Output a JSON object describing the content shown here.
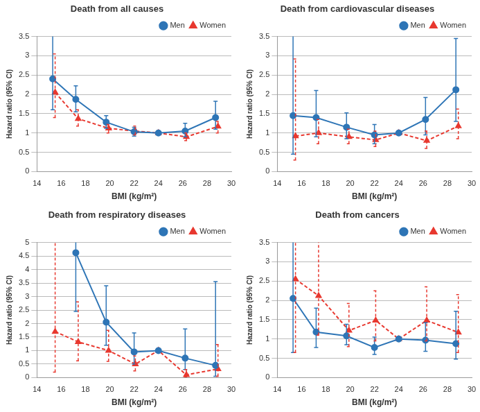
{
  "chart_data": [
    {
      "type": "line",
      "title": "Death from all causes",
      "x_label": "BMI (kg/m²)",
      "y_label": "Hazard ratio (95% CI)",
      "xlim": [
        14,
        30
      ],
      "xticks": [
        14,
        16,
        18,
        20,
        22,
        24,
        26,
        28,
        30
      ],
      "ylim": [
        0,
        3.5
      ],
      "yticks": [
        0,
        0.5,
        1,
        1.5,
        2,
        2.5,
        3,
        3.5
      ],
      "grid": "y",
      "legend": "top-right",
      "series": [
        {
          "name": "Men",
          "color": "#2e75b6",
          "marker": "circle",
          "line_style": "solid",
          "x": [
            15.3,
            17.2,
            19.7,
            22.0,
            24.0,
            26.2,
            28.7
          ],
          "values": [
            2.4,
            1.87,
            1.28,
            1.03,
            1.0,
            1.05,
            1.4
          ],
          "ci_low": [
            1.6,
            1.55,
            1.12,
            0.92,
            null,
            0.9,
            1.1
          ],
          "ci_high": [
            3.9,
            2.22,
            1.45,
            1.15,
            null,
            1.25,
            1.82
          ]
        },
        {
          "name": "Women",
          "color": "#e8382f",
          "marker": "triangle",
          "line_style": "dashed",
          "x": [
            15.5,
            17.4,
            19.9,
            22.1,
            24.0,
            26.3,
            28.9
          ],
          "values": [
            2.05,
            1.37,
            1.12,
            1.05,
            1.0,
            0.9,
            1.17
          ],
          "ci_low": [
            1.4,
            1.18,
            1.0,
            0.95,
            null,
            0.8,
            1.0
          ],
          "ci_high": [
            3.05,
            1.6,
            1.22,
            1.18,
            null,
            1.0,
            1.3
          ]
        }
      ]
    },
    {
      "type": "line",
      "title": "Death from cardiovascular diseases",
      "x_label": "BMI (kg/m²)",
      "y_label": "Hazard ratio (95% CI)",
      "xlim": [
        14,
        30
      ],
      "xticks": [
        14,
        16,
        18,
        20,
        22,
        24,
        26,
        28,
        30
      ],
      "ylim": [
        0,
        3.5
      ],
      "yticks": [
        0,
        0.5,
        1,
        1.5,
        2,
        2.5,
        3,
        3.5
      ],
      "grid": "y",
      "legend": "top-right",
      "series": [
        {
          "name": "Men",
          "color": "#2e75b6",
          "marker": "circle",
          "line_style": "solid",
          "x": [
            15.3,
            17.2,
            19.7,
            22.0,
            24.0,
            26.2,
            28.7
          ],
          "values": [
            1.45,
            1.4,
            1.15,
            0.95,
            1.0,
            1.35,
            2.12
          ],
          "ci_low": [
            0.45,
            0.9,
            0.85,
            0.72,
            null,
            0.95,
            1.3
          ],
          "ci_high": [
            3.8,
            2.1,
            1.52,
            1.22,
            null,
            1.92,
            3.45
          ]
        },
        {
          "name": "Women",
          "color": "#e8382f",
          "marker": "triangle",
          "line_style": "dashed",
          "x": [
            15.5,
            17.4,
            19.9,
            22.1,
            24.0,
            26.3,
            28.9
          ],
          "values": [
            0.92,
            1.0,
            0.9,
            0.82,
            1.0,
            0.8,
            1.18
          ],
          "ci_low": [
            0.3,
            0.72,
            0.72,
            0.65,
            null,
            0.6,
            0.85
          ],
          "ci_high": [
            2.92,
            1.35,
            1.1,
            1.05,
            null,
            1.05,
            1.62
          ]
        }
      ]
    },
    {
      "type": "line",
      "title": "Death from respiratory diseases",
      "x_label": "BMI (kg/m²)",
      "y_label": "Hazard ratio (95% CI)",
      "xlim": [
        14,
        30
      ],
      "xticks": [
        14,
        16,
        18,
        20,
        22,
        24,
        26,
        28,
        30
      ],
      "ylim": [
        0,
        5
      ],
      "yticks": [
        0,
        0.5,
        1,
        1.5,
        2,
        2.5,
        3,
        3.5,
        4,
        4.5,
        5
      ],
      "grid": "y",
      "legend": "top-right",
      "series": [
        {
          "name": "Men",
          "color": "#2e75b6",
          "marker": "circle",
          "line_style": "solid",
          "x": [
            15.3,
            17.2,
            19.7,
            22.0,
            24.0,
            26.2,
            28.7
          ],
          "values": [
            null,
            4.62,
            2.05,
            0.95,
            1.0,
            0.72,
            0.45
          ],
          "ci_low": [
            null,
            2.45,
            1.2,
            0.5,
            null,
            0.3,
            0.05
          ],
          "ci_high": [
            null,
            5.5,
            3.4,
            1.65,
            null,
            1.8,
            3.55
          ]
        },
        {
          "name": "Women",
          "color": "#e8382f",
          "marker": "triangle",
          "line_style": "dashed",
          "x": [
            15.5,
            17.4,
            19.9,
            22.1,
            24.0,
            26.3,
            28.9
          ],
          "values": [
            1.7,
            1.32,
            1.0,
            0.5,
            1.0,
            0.1,
            0.32
          ],
          "ci_low": [
            0.2,
            0.62,
            0.6,
            0.25,
            null,
            0.02,
            0.05
          ],
          "ci_high": [
            5.5,
            2.8,
            1.75,
            0.8,
            null,
            0.3,
            1.22
          ]
        }
      ]
    },
    {
      "type": "line",
      "title": "Death from cancers",
      "x_label": "BMI (kg/m²)",
      "y_label": "Hazard ratio (95% CI)",
      "xlim": [
        14,
        30
      ],
      "xticks": [
        14,
        16,
        18,
        20,
        22,
        24,
        26,
        28,
        30
      ],
      "ylim": [
        0,
        3.5
      ],
      "yticks": [
        0,
        0.5,
        1,
        1.5,
        2,
        2.5,
        3,
        3.5
      ],
      "grid": "y",
      "legend": "top-right",
      "series": [
        {
          "name": "Men",
          "color": "#2e75b6",
          "marker": "circle",
          "line_style": "solid",
          "x": [
            15.3,
            17.2,
            19.7,
            22.0,
            24.0,
            26.2,
            28.7
          ],
          "values": [
            2.05,
            1.18,
            1.08,
            0.78,
            1.0,
            0.97,
            0.88
          ],
          "ci_low": [
            0.65,
            0.78,
            0.85,
            0.6,
            null,
            0.68,
            0.48
          ],
          "ci_high": [
            3.9,
            1.8,
            1.38,
            1.05,
            null,
            1.42,
            1.72
          ]
        },
        {
          "name": "Women",
          "color": "#e8382f",
          "marker": "triangle",
          "line_style": "dashed",
          "x": [
            15.5,
            17.4,
            19.9,
            22.1,
            24.0,
            26.3,
            28.9
          ],
          "values": [
            2.55,
            2.12,
            1.22,
            1.48,
            1.0,
            1.48,
            1.17
          ],
          "ci_low": [
            0.65,
            1.1,
            0.8,
            0.95,
            null,
            0.95,
            0.65
          ],
          "ci_high": [
            3.9,
            3.9,
            1.92,
            2.25,
            null,
            2.35,
            2.15
          ]
        }
      ]
    }
  ]
}
